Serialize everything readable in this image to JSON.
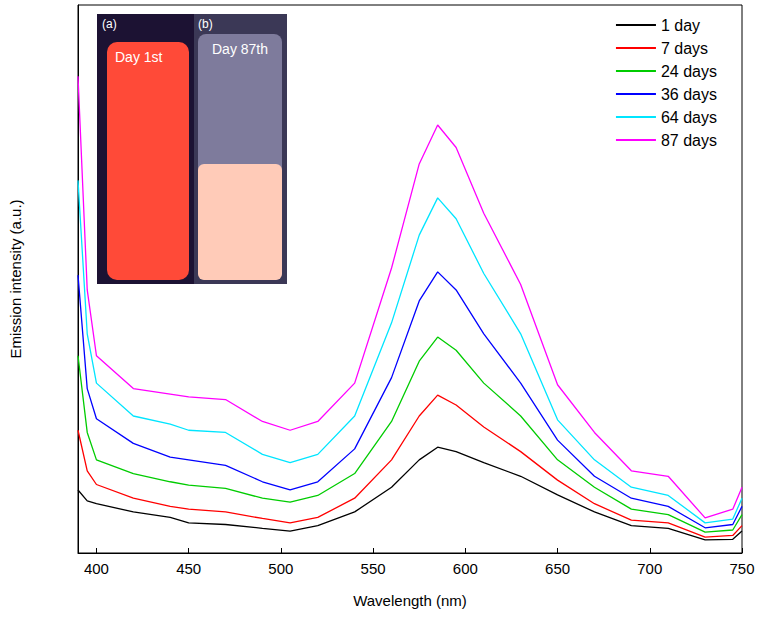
{
  "chart_data": {
    "type": "line",
    "x_label": "Wavelength (nm)",
    "y_label": "Emission intensity (a.u.)",
    "x": [
      390,
      395,
      400,
      420,
      440,
      450,
      470,
      490,
      505,
      520,
      540,
      560,
      575,
      585,
      595,
      610,
      630,
      650,
      670,
      690,
      710,
      730,
      745,
      750
    ],
    "series": [
      {
        "name": "1 day",
        "color": "#000000",
        "values": [
          11.5,
          9.5,
          9,
          7.5,
          6.5,
          5.5,
          5.2,
          4.5,
          4.0,
          5.0,
          7.5,
          12,
          17,
          19.3,
          18.5,
          16.5,
          14,
          10.6,
          7.5,
          5,
          4.5,
          2.4,
          2.5,
          4
        ]
      },
      {
        "name": "7 days",
        "color": "#ff0000",
        "values": [
          22.4,
          15,
          12.5,
          10,
          8.5,
          8,
          7.5,
          6.3,
          5.5,
          6.5,
          10,
          17,
          25,
          28.8,
          27,
          23,
          18.5,
          13.3,
          9,
          6,
          5.5,
          2.9,
          3.2,
          5
        ]
      },
      {
        "name": "24 days",
        "color": "#00cc00",
        "values": [
          36,
          22,
          17,
          14.5,
          13,
          12.4,
          11.8,
          10,
          9.3,
          10.5,
          14.5,
          24,
          35,
          39.4,
          37,
          31,
          25,
          17,
          12,
          8,
          7,
          3.8,
          4.2,
          7
        ]
      },
      {
        "name": "36 days",
        "color": "#0000ff",
        "values": [
          50.7,
          30,
          24.5,
          20,
          17.5,
          17,
          16,
          13,
          11.5,
          13,
          19,
          32,
          46,
          51.3,
          48,
          40,
          31,
          20.6,
          14,
          10,
          8.5,
          4.6,
          5.2,
          8.5
        ]
      },
      {
        "name": "64 days",
        "color": "#00e5ff",
        "values": [
          68,
          40,
          31,
          25,
          23.5,
          22.4,
          22,
          18,
          16.5,
          18,
          25,
          42,
          58,
          64.8,
          61,
          51,
          40,
          24.3,
          17,
          12,
          10.5,
          5.5,
          6.2,
          10
        ]
      },
      {
        "name": "87 days",
        "color": "#ff00ff",
        "values": [
          87,
          48,
          36,
          30,
          29,
          28.5,
          28,
          24,
          22.4,
          24,
          31,
          52,
          71,
          78.1,
          74,
          62,
          49,
          30.7,
          22,
          15,
          14,
          6.4,
          8,
          12
        ]
      }
    ],
    "xlim": [
      390,
      750
    ],
    "xticks": [
      400,
      450,
      500,
      550,
      600,
      650,
      700,
      750
    ],
    "ylim": [
      0,
      100
    ],
    "tick_labels": "x",
    "grid": false,
    "legend": "upper right",
    "annotations": [
      {
        "text": "(a)"
      },
      {
        "text": "Day 1st"
      },
      {
        "text": "(b)"
      },
      {
        "text": "Day 87th"
      }
    ]
  }
}
